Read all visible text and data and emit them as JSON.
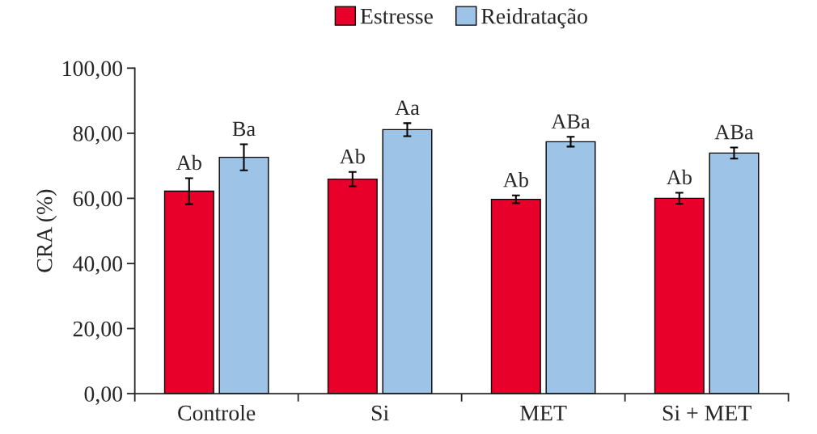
{
  "chart_data": {
    "type": "bar",
    "ylabel": "CRA (%)",
    "categories": [
      "Controle",
      "Si",
      "MET",
      "Si + MET"
    ],
    "series": [
      {
        "name": "Estresse",
        "color": "#e8002a",
        "values": [
          62.2,
          65.9,
          59.7,
          60.0
        ],
        "errors": [
          4,
          2.2,
          1.2,
          1.7
        ],
        "value_labels": [
          "Ab",
          "Ab",
          "Ab",
          "Ab"
        ]
      },
      {
        "name": "Reidratação",
        "color": "#9dc3e6",
        "values": [
          72.6,
          81.1,
          77.4,
          73.9
        ],
        "errors": [
          4,
          2,
          1.5,
          1.7
        ],
        "value_labels": [
          "Ba",
          "Aa",
          "ABa",
          "ABa"
        ]
      }
    ],
    "ylim": [
      0,
      100
    ],
    "yticks": [
      {
        "value": 0,
        "label": "0,00"
      },
      {
        "value": 20,
        "label": "20,00"
      },
      {
        "value": 40,
        "label": "40,00"
      },
      {
        "value": 60,
        "label": "60,00"
      },
      {
        "value": 80,
        "label": "80,00"
      },
      {
        "value": 100,
        "label": "100,00"
      }
    ],
    "grid": false,
    "legend": "top"
  }
}
